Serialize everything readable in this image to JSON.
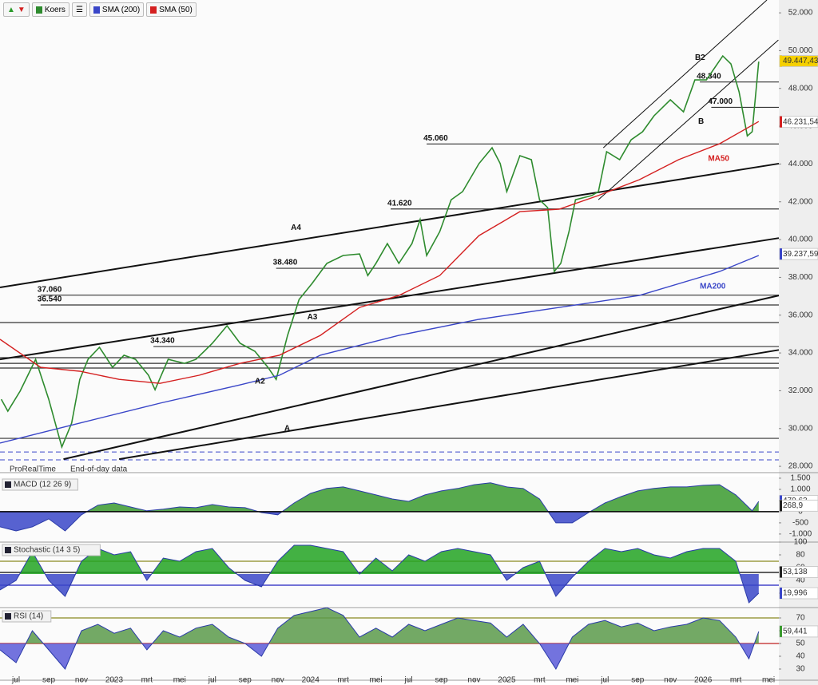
{
  "toolbar_icons": true,
  "footer": {
    "brand": "ProRealTime",
    "note": "End-of-day data"
  },
  "chart_data": [
    {
      "type": "line",
      "xlim": [
        -0.98,
        46.63
      ],
      "xticks": [
        {
          "value": 0,
          "label": "jul"
        },
        {
          "value": 2,
          "label": "sep"
        },
        {
          "value": 4,
          "label": "nov"
        },
        {
          "value": 6,
          "label": "2023"
        },
        {
          "value": 8,
          "label": "mrt"
        },
        {
          "value": 10,
          "label": "mei"
        },
        {
          "value": 12,
          "label": "jul"
        },
        {
          "value": 14,
          "label": "sep"
        },
        {
          "value": 16,
          "label": "nov"
        },
        {
          "value": 18,
          "label": "2024"
        },
        {
          "value": 20,
          "label": "mrt"
        },
        {
          "value": 22,
          "label": "mei"
        },
        {
          "value": 24,
          "label": "jul"
        },
        {
          "value": 26,
          "label": "sep"
        },
        {
          "value": 28,
          "label": "nov"
        },
        {
          "value": 30,
          "label": "2025"
        },
        {
          "value": 32,
          "label": "mrt"
        },
        {
          "value": 34,
          "label": "mei"
        },
        {
          "value": 36,
          "label": "jul"
        },
        {
          "value": 38,
          "label": "sep"
        },
        {
          "value": 40,
          "label": "nov"
        },
        {
          "value": 42,
          "label": "2026"
        },
        {
          "value": 44,
          "label": "mrt"
        },
        {
          "value": 46,
          "label": "mei"
        }
      ],
      "ylim": [
        27750,
        52680
      ],
      "yticks": [
        {
          "value": 28000,
          "label": "28.000"
        },
        {
          "value": 30000,
          "label": "30.000"
        },
        {
          "value": 32000,
          "label": "32.000"
        },
        {
          "value": 34000,
          "label": "34.000"
        },
        {
          "value": 36000,
          "label": "36.000"
        },
        {
          "value": 38000,
          "label": "38.000"
        },
        {
          "value": 40000,
          "label": "40.000"
        },
        {
          "value": 42000,
          "label": "42.000"
        },
        {
          "value": 44000,
          "label": "44.000"
        },
        {
          "value": 46000,
          "label": "46.000"
        },
        {
          "value": 48000,
          "label": "48.000"
        },
        {
          "value": 50000,
          "label": "50.000"
        },
        {
          "value": 52000,
          "label": "52.000"
        }
      ],
      "series": [
        {
          "name": "Koers",
          "color": "#2e8b2e",
          "x": [
            -0.9,
            -0.5,
            0.25,
            1.2,
            2.0,
            2.8,
            3.4,
            3.9,
            4.4,
            5.1,
            5.9,
            6.6,
            7.3,
            8.1,
            8.5,
            9.3,
            10.3,
            11.0,
            12.0,
            12.9,
            13.7,
            14.6,
            15.4,
            15.9,
            16.6,
            17.3,
            18.1,
            19.0,
            20.0,
            21.0,
            21.5,
            22.0,
            22.7,
            23.4,
            24.2,
            24.7,
            25.1,
            25.9,
            26.6,
            27.3,
            28.3,
            29.1,
            29.6,
            30.0,
            30.8,
            31.5,
            32.0,
            32.5,
            32.9,
            33.3,
            33.8,
            34.2,
            35.2,
            35.6,
            36.1,
            36.9,
            37.6,
            38.3,
            39.0,
            40.0,
            40.8,
            41.5,
            42.2,
            43.2,
            43.7,
            44.2,
            44.7,
            45.0,
            45.4
          ],
          "values": [
            31550,
            30920,
            31980,
            33660,
            31550,
            29020,
            30290,
            32600,
            33660,
            34300,
            33240,
            33880,
            33660,
            32820,
            32050,
            33660,
            33450,
            33660,
            34510,
            35440,
            34510,
            34090,
            33240,
            32600,
            34930,
            36830,
            37680,
            38740,
            39160,
            39240,
            38100,
            38740,
            39790,
            38740,
            39790,
            41060,
            39160,
            40420,
            42110,
            42540,
            44020,
            44860,
            44020,
            42540,
            44440,
            44230,
            42110,
            41690,
            38310,
            38740,
            40420,
            42110,
            42330,
            42540,
            44650,
            44230,
            45280,
            45710,
            46550,
            47400,
            46760,
            48450,
            48450,
            49720,
            49300,
            47820,
            45490,
            45710,
            49420
          ]
        },
        {
          "name": "SMA (50)",
          "color": "#d42020",
          "x": [
            -0.98,
            1.5,
            3.9,
            6.3,
            8.8,
            11.2,
            13.7,
            16.1,
            18.6,
            21.0,
            23.4,
            25.9,
            28.3,
            30.8,
            33.2,
            35.6,
            38.1,
            40.5,
            43.0,
            45.4
          ],
          "values": [
            34720,
            33240,
            33030,
            32600,
            32390,
            32820,
            33450,
            33880,
            34930,
            36410,
            37040,
            38100,
            40210,
            41480,
            41610,
            42330,
            43170,
            44230,
            45070,
            46250
          ]
        },
        {
          "name": "SMA (200)",
          "color": "#3a46c8",
          "x": [
            -0.98,
            3.9,
            8.8,
            13.7,
            16.1,
            18.6,
            23.4,
            28.3,
            33.2,
            38.1,
            43.0,
            45.4
          ],
          "values": [
            29230,
            30290,
            31340,
            32310,
            32820,
            33880,
            34930,
            35780,
            36410,
            37040,
            38310,
            39160
          ]
        }
      ],
      "levels": [
        {
          "value": 48340,
          "label": "48.340",
          "x": 41.8
        },
        {
          "value": 47000,
          "label": "47.000",
          "x": 42.5
        },
        {
          "value": 45060,
          "label": "45.060",
          "x": 25.1
        },
        {
          "value": 41620,
          "label": "41.620",
          "x": 22.9
        },
        {
          "value": 38480,
          "label": "38.480",
          "x": 15.9
        },
        {
          "value": 37060,
          "label": "37.060",
          "x": 1.5
        },
        {
          "value": 36540,
          "label": "36.540",
          "x": 1.5
        },
        {
          "value": 34340,
          "label": "34.340",
          "x": 8.4
        },
        {
          "value": 35610
        },
        {
          "value": 33750
        },
        {
          "value": 33450
        },
        {
          "value": 33200
        },
        {
          "value": 29480
        },
        {
          "value": 28760,
          "dashed": true
        },
        {
          "value": 28340,
          "dashed": true
        }
      ],
      "trendlines": [
        {
          "x": [
            -0.98,
            46.63
          ],
          "values": [
            37470,
            44020
          ]
        },
        {
          "x": [
            -0.98,
            46.63
          ],
          "values": [
            33660,
            40080
          ]
        },
        {
          "x": [
            2.9,
            46.63
          ],
          "values": [
            28380,
            37040
          ]
        },
        {
          "x": [
            6.3,
            46.63
          ],
          "values": [
            28380,
            34160
          ]
        },
        {
          "x": [
            35.6,
            46.6
          ],
          "values": [
            42110,
            50560
          ],
          "thin": true
        },
        {
          "x": [
            35.9,
            45.9
          ],
          "values": [
            44860,
            52680
          ],
          "thin": true
        }
      ],
      "annotations": [
        {
          "text": "A4",
          "x": 16.8,
          "value": 40630
        },
        {
          "text": "A3",
          "x": 17.8,
          "value": 35900
        },
        {
          "text": "A2",
          "x": 14.6,
          "value": 32480
        },
        {
          "text": "A",
          "x": 16.4,
          "value": 29990
        },
        {
          "text": "B",
          "x": 41.7,
          "value": 46250
        },
        {
          "text": "B2",
          "x": 41.5,
          "value": 49630
        },
        {
          "text": "MA50",
          "x": 42.3,
          "value": 44270,
          "color": "#d42020"
        },
        {
          "text": "MA200",
          "x": 41.8,
          "value": 37510,
          "color": "#3a46c8"
        }
      ],
      "last_values": [
        {
          "value": 49447.43,
          "label": "49.447,43",
          "color": "#f5d000"
        },
        {
          "value": 46231.54,
          "label": "46.231,54",
          "color": "#d42020"
        },
        {
          "value": 39237.59,
          "label": "39.237,59",
          "color": "#3a46c8"
        }
      ]
    },
    {
      "type": "area",
      "title": "MACD (12 26 9)",
      "baseline": 0,
      "ylim": [
        -1290,
        1570
      ],
      "yticks": [
        {
          "value": 1500,
          "label": "1.500"
        },
        {
          "value": 1000,
          "label": "1.000"
        },
        500,
        0,
        -500,
        {
          "value": -1000,
          "label": "-1.000"
        }
      ],
      "series": [
        {
          "name": "MACD",
          "color": "#3a9a2e",
          "negative_color": "#3a46c8",
          "x": [
            -0.98,
            0,
            1,
            2,
            3,
            4,
            5,
            6,
            7,
            8,
            9,
            10,
            11,
            12,
            13,
            14,
            15,
            16,
            17,
            18,
            19,
            20,
            21,
            22,
            23,
            24,
            25,
            26,
            27,
            28,
            29,
            30,
            31,
            32,
            33,
            34,
            35,
            36,
            37,
            38,
            39,
            40,
            41,
            42,
            43,
            44,
            45,
            45.4
          ],
          "values": [
            -680,
            -860,
            -680,
            -320,
            -860,
            -140,
            290,
            390,
            210,
            40,
            110,
            210,
            180,
            320,
            210,
            180,
            -40,
            -140,
            390,
            820,
            1040,
            1110,
            930,
            750,
            570,
            460,
            750,
            930,
            1040,
            1210,
            1290,
            1110,
            1040,
            570,
            -500,
            -500,
            -40,
            390,
            680,
            930,
            1040,
            1110,
            1110,
            1180,
            1210,
            750,
            40,
            460
          ]
        }
      ],
      "last_values": [
        {
          "value": 479.63,
          "label": "479,63",
          "color": "#3a46c8"
        },
        {
          "value": 268.9,
          "label": "268,9",
          "color": "#222222"
        }
      ]
    },
    {
      "type": "area",
      "title": "Stochastic (14 3 5)",
      "baseline": 50,
      "ylim": [
        0,
        100
      ],
      "yticks": [
        100,
        80,
        60,
        40,
        20
      ],
      "levels": [
        {
          "value": 70,
          "color": "#8a8a20"
        },
        {
          "value": 52.5,
          "color": "#000000"
        },
        {
          "value": 32.5,
          "color": "#2020c0"
        }
      ],
      "series": [
        {
          "name": "Stochastic",
          "color": "#22a322",
          "negative_color": "#3a46c8",
          "x": [
            -0.98,
            0,
            1,
            2,
            3,
            4,
            5,
            6,
            7,
            8,
            9,
            10,
            11,
            12,
            13,
            14,
            15,
            16,
            17,
            18,
            19,
            20,
            21,
            22,
            23,
            24,
            25,
            26,
            27,
            28,
            29,
            30,
            31,
            32,
            33,
            34,
            35,
            36,
            37,
            38,
            39,
            40,
            41,
            42,
            43,
            44,
            44.8,
            45.4
          ],
          "values": [
            25,
            40,
            85,
            40,
            15,
            70,
            90,
            80,
            85,
            40,
            75,
            70,
            85,
            90,
            60,
            40,
            30,
            70,
            95,
            95,
            90,
            85,
            50,
            75,
            55,
            80,
            70,
            85,
            90,
            85,
            80,
            40,
            60,
            70,
            15,
            45,
            70,
            90,
            85,
            90,
            80,
            75,
            85,
            90,
            90,
            70,
            5,
            20
          ]
        }
      ],
      "last_values": [
        {
          "value": 53.138,
          "label": "53,138",
          "color": "#222222"
        },
        {
          "value": 19.996,
          "label": "19,996",
          "color": "#3a46c8"
        }
      ]
    },
    {
      "type": "area",
      "title": "RSI (14)",
      "baseline": 50,
      "ylim": [
        22.5,
        77.5
      ],
      "yticks": [
        70,
        60,
        50,
        40,
        30
      ],
      "levels": [
        {
          "value": 70,
          "color": "#8a8a20"
        },
        {
          "value": 50,
          "color": "#c02020"
        }
      ],
      "series": [
        {
          "name": "RSI",
          "color": "#5a9a4a",
          "negative_color": "#5a5ad8",
          "x": [
            -0.98,
            0,
            1,
            2,
            3,
            4,
            5,
            6,
            7,
            8,
            9,
            10,
            11,
            12,
            13,
            14,
            15,
            16,
            17,
            18,
            19,
            20,
            21,
            22,
            23,
            24,
            25,
            26,
            27,
            28,
            29,
            30,
            31,
            32,
            33,
            34,
            35,
            36,
            37,
            38,
            39,
            40,
            41,
            42,
            43,
            44,
            44.8,
            45.4
          ],
          "values": [
            45,
            35,
            60,
            45,
            30,
            60,
            65,
            58,
            62,
            45,
            60,
            55,
            62,
            65,
            55,
            50,
            40,
            62,
            72,
            75,
            78,
            72,
            55,
            62,
            55,
            65,
            60,
            65,
            70,
            68,
            66,
            55,
            65,
            50,
            30,
            55,
            65,
            68,
            63,
            66,
            60,
            63,
            65,
            70,
            68,
            55,
            38,
            59.4
          ]
        }
      ],
      "last_values": [
        {
          "value": 59.441,
          "label": "59,441",
          "color": "#3a9a2e"
        }
      ]
    }
  ]
}
